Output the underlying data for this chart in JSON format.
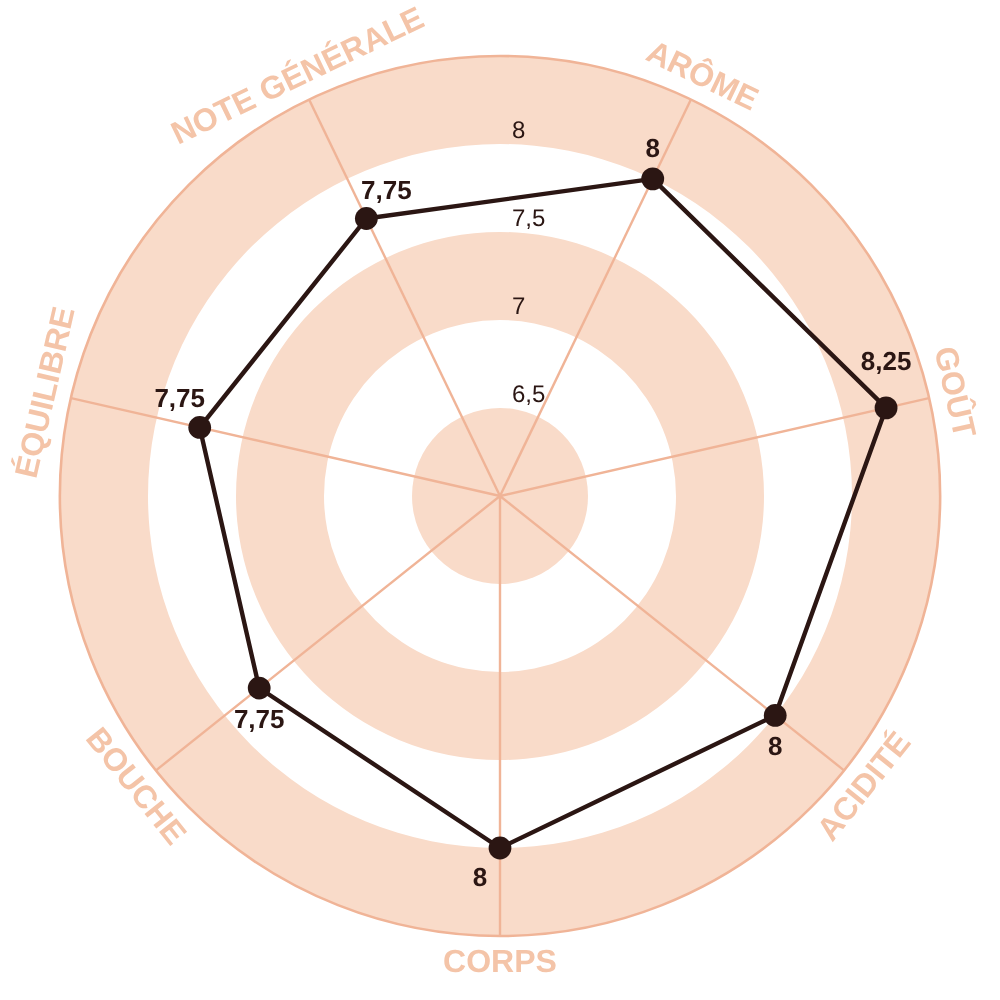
{
  "chart_data": {
    "type": "radar",
    "categories": [
      "ARÔME",
      "GOÛT",
      "ACIDITÉ",
      "CORPS",
      "BOUCHE",
      "ÉQUILIBRE",
      "NOTE GÉNÉRALE"
    ],
    "series": [
      {
        "color": "#2b1613",
        "values": [
          8,
          8.25,
          8,
          8,
          7.75,
          7.75,
          7.75
        ],
        "value_labels": [
          "8",
          "8,25",
          "8",
          "8",
          "7,75",
          "7,75",
          "7,75"
        ]
      }
    ],
    "ylim": [
      6,
      8.5
    ],
    "yticks": [
      {
        "value": 6.5,
        "label": "6,5"
      },
      7,
      {
        "value": 7.5,
        "label": "7,5"
      },
      8
    ],
    "grid": true,
    "marker": "circle"
  }
}
